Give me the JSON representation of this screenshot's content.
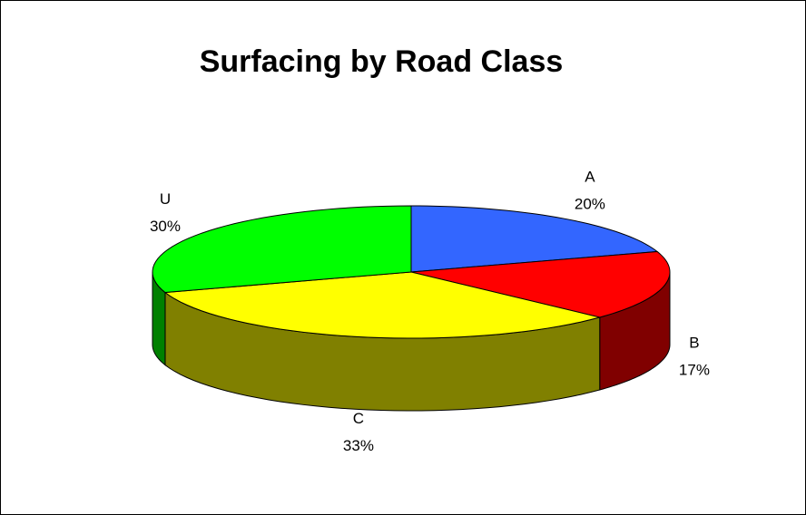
{
  "chart_data": {
    "type": "pie3d",
    "title": "Surfacing by Road Class",
    "categories": [
      "A",
      "B",
      "C",
      "U"
    ],
    "values": [
      20,
      17,
      33,
      30
    ],
    "value_labels": [
      "20%",
      "17%",
      "33%",
      "30%"
    ],
    "colors": [
      "#3366ff",
      "#ff0000",
      "#ffff00",
      "#00ff00"
    ]
  }
}
